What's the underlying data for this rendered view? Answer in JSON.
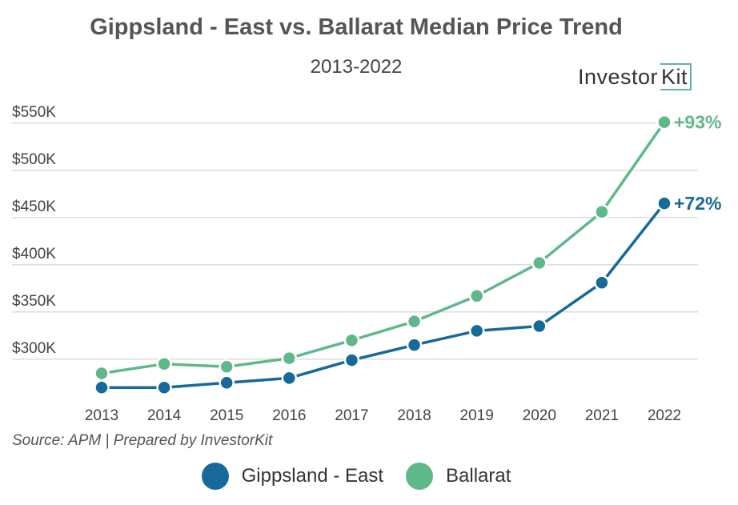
{
  "header": {
    "title": "Gippsland - East vs. Ballarat Median Price Trend",
    "subtitle": "2013-2022",
    "logo_text": "Investor",
    "logo_box_text": "Kit"
  },
  "footer": {
    "source": "Source: APM | Prepared by InvestorKit"
  },
  "colors": {
    "gippsland": "#17699a",
    "ballarat": "#5fb88a",
    "grid": "#dddddd",
    "axis_text": "#444444"
  },
  "chart_data": {
    "type": "line",
    "title": "Gippsland - East vs. Ballarat Median Price Trend",
    "subtitle": "2013-2022",
    "x": [
      "2013",
      "2014",
      "2015",
      "2016",
      "2017",
      "2018",
      "2019",
      "2020",
      "2021",
      "2022"
    ],
    "y_ticks": [
      300000,
      350000,
      400000,
      450000,
      500000,
      550000
    ],
    "y_tick_labels": [
      "$300K",
      "$350K",
      "$400K",
      "$450K",
      "$500K",
      "$550K"
    ],
    "ylim": [
      260000,
      560000
    ],
    "grid": true,
    "legend_position": "bottom",
    "series": [
      {
        "name": "Gippsland - East",
        "color": "#17699a",
        "values": [
          270000,
          270000,
          275000,
          280000,
          299000,
          315000,
          330000,
          335000,
          381000,
          465000
        ],
        "end_label": "+72%"
      },
      {
        "name": "Ballarat",
        "color": "#5fb88a",
        "values": [
          285000,
          295000,
          292000,
          301000,
          320000,
          340000,
          367000,
          402000,
          456000,
          551000
        ],
        "end_label": "+93%"
      }
    ]
  }
}
